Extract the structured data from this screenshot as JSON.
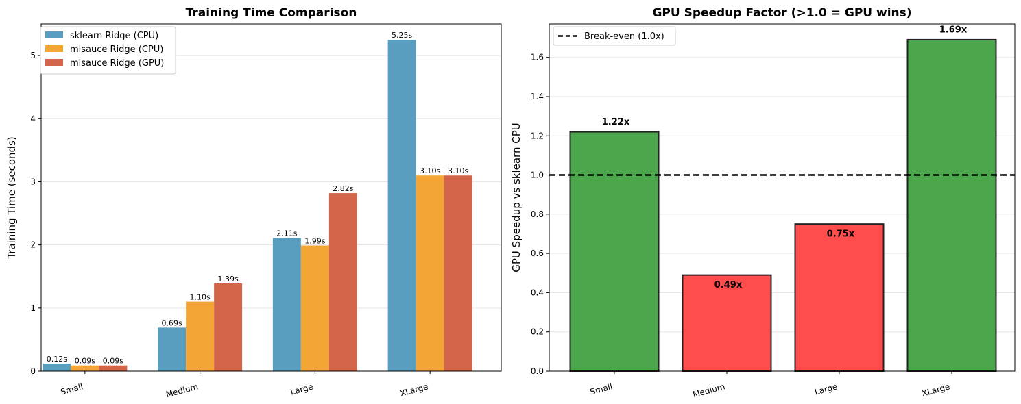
{
  "chart_data": [
    {
      "type": "bar",
      "title": "Training Time Comparison",
      "xlabel": "",
      "ylabel": "Training Time (seconds)",
      "categories": [
        "Small",
        "Medium",
        "Large",
        "XLarge"
      ],
      "ylim": [
        0,
        5.5
      ],
      "yticks": [
        "0",
        "1",
        "2",
        "3",
        "4",
        "5"
      ],
      "grid": "y",
      "legend_position": "top-left",
      "series": [
        {
          "name": "sklearn Ridge (CPU)",
          "color": "#5a9ebf",
          "values": [
            0.12,
            0.69,
            2.11,
            5.25
          ],
          "labels": [
            "0.12s",
            "0.69s",
            "2.11s",
            "5.25s"
          ]
        },
        {
          "name": "mlsauce Ridge (CPU)",
          "color": "#f2a534",
          "values": [
            0.09,
            1.1,
            1.99,
            3.1
          ],
          "labels": [
            "0.09s",
            "1.10s",
            "1.99s",
            "3.10s"
          ]
        },
        {
          "name": "mlsauce Ridge (GPU)",
          "color": "#d3654b",
          "values": [
            0.09,
            1.39,
            2.82,
            3.1
          ],
          "labels": [
            "0.09s",
            "1.39s",
            "2.82s",
            "3.10s"
          ]
        }
      ]
    },
    {
      "type": "bar",
      "title": "GPU Speedup Factor (>1.0 = GPU wins)",
      "xlabel": "",
      "ylabel": "GPU Speedup vs sklearn CPU",
      "categories": [
        "Small",
        "Medium",
        "Large",
        "XLarge"
      ],
      "values": [
        1.22,
        0.49,
        0.75,
        1.69
      ],
      "labels": [
        "1.22x",
        "0.49x",
        "0.75x",
        "1.69x"
      ],
      "colors": [
        "#4ca64c",
        "#ff4c4c",
        "#ff4c4c",
        "#4ca64c"
      ],
      "ylim": [
        0,
        1.77
      ],
      "yticks": [
        "0.0",
        "0.2",
        "0.4",
        "0.6",
        "0.8",
        "1.0",
        "1.2",
        "1.4",
        "1.6"
      ],
      "grid": "y",
      "reference_line": {
        "value": 1.0,
        "label": "Break-even (1.0x)"
      },
      "legend_position": "top-left"
    }
  ]
}
